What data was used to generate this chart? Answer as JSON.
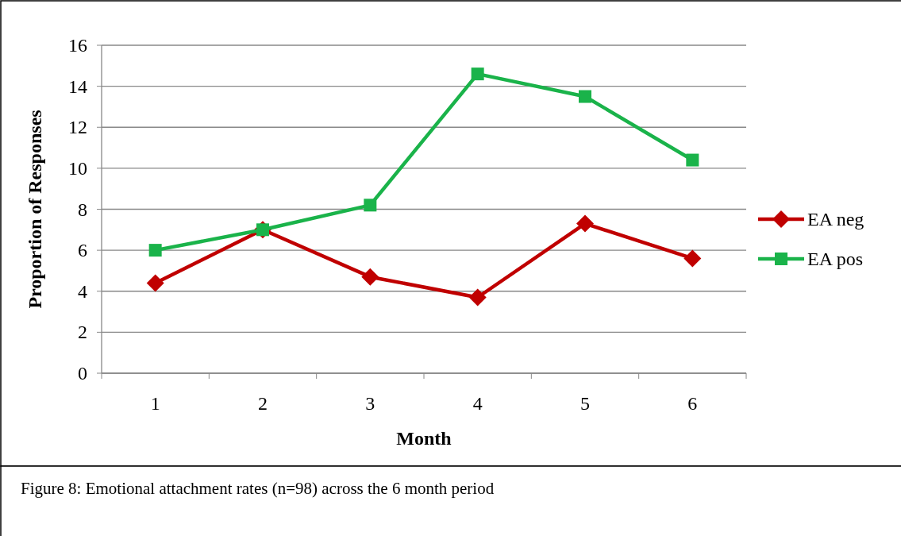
{
  "chart_data": {
    "type": "line",
    "xlabel": "Month",
    "ylabel": "Proportion of Responses",
    "categories": [
      "1",
      "2",
      "3",
      "4",
      "5",
      "6"
    ],
    "series": [
      {
        "name": "EA neg",
        "color": "#c00000",
        "marker": "diamond",
        "values": [
          4.4,
          7.0,
          4.7,
          3.7,
          7.3,
          5.6
        ]
      },
      {
        "name": "EA pos",
        "color": "#1ab34a",
        "marker": "square",
        "values": [
          6.0,
          7.0,
          8.2,
          14.6,
          13.5,
          10.4
        ]
      }
    ],
    "ylim": [
      0,
      16
    ],
    "yticks": [
      0,
      2,
      4,
      6,
      8,
      10,
      12,
      14,
      16
    ],
    "grid": "y",
    "legend": "right",
    "line_style": "solid",
    "annotations": [
      "Figure 8: Emotional attachment rates (n=98) across the 6 month period"
    ]
  }
}
